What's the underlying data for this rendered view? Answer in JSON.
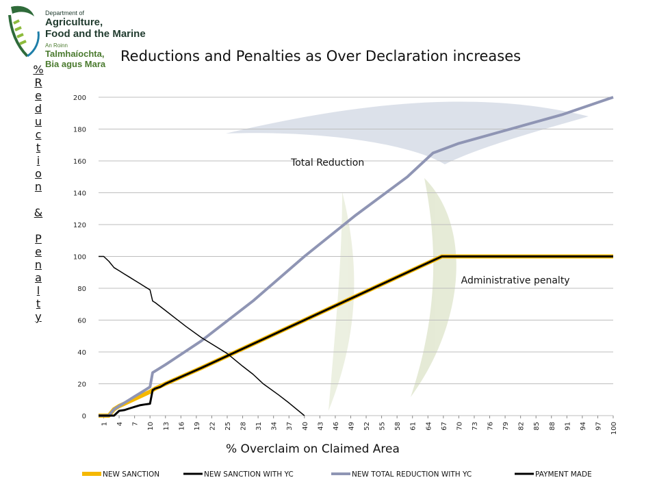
{
  "logo": {
    "line1": "Department of",
    "line2": "Agriculture,",
    "line3": "Food and the Marine",
    "line4": "An Roinn",
    "line5": "Talmhaíochta,",
    "line6": "Bia agus Mara"
  },
  "ylabel_text": "%\nR\ne\nd\nu\nc\nt\ni\no\nn\n\n&\n\nP\ne\nn\na\nl\nt\ny",
  "colors": {
    "new_sanction": "#f5b800",
    "new_sanction_yc": "#000000",
    "total_reduction": "#8f95b4",
    "payment_made": "#000000",
    "grid": "#bdbdbd"
  },
  "chart_data": {
    "type": "line",
    "title": "Reductions and Penalties as Over Declaration increases",
    "xlabel": "% Overclaim on Claimed Area",
    "ylabel": "% Reduction & Penalty",
    "x_ticks": [
      1,
      4,
      7,
      10,
      13,
      16,
      19,
      22,
      25,
      28,
      31,
      34,
      37,
      40,
      43,
      46,
      49,
      52,
      55,
      58,
      61,
      64,
      67,
      70,
      73,
      76,
      79,
      82,
      85,
      88,
      91,
      94,
      97,
      100
    ],
    "ylim": [
      0,
      200
    ],
    "y_ticks": [
      0,
      20,
      40,
      60,
      80,
      100,
      120,
      140,
      160,
      180,
      200
    ],
    "grid": "horizontal",
    "legend_position": "bottom",
    "series": [
      {
        "name": "NEW SANCTION",
        "points": [
          [
            0,
            0
          ],
          [
            1,
            0
          ],
          [
            2,
            0
          ],
          [
            3,
            4
          ],
          [
            4,
            6
          ],
          [
            5,
            7.5
          ],
          [
            6,
            9
          ],
          [
            7,
            10.5
          ],
          [
            8,
            12
          ],
          [
            9,
            13.5
          ],
          [
            10,
            15
          ],
          [
            11,
            17
          ],
          [
            12,
            18.5
          ],
          [
            13,
            20
          ],
          [
            20,
            30
          ],
          [
            30,
            45
          ],
          [
            40,
            60
          ],
          [
            50,
            75
          ],
          [
            60,
            90
          ],
          [
            66.7,
            100
          ],
          [
            100,
            100
          ]
        ]
      },
      {
        "name": "NEW SANCTION WITH YC",
        "points": [
          [
            0,
            0
          ],
          [
            1,
            0
          ],
          [
            2,
            0
          ],
          [
            3,
            0
          ],
          [
            4,
            3
          ],
          [
            5,
            3.5
          ],
          [
            6,
            4.5
          ],
          [
            7,
            5.5
          ],
          [
            8,
            6.5
          ],
          [
            9,
            7
          ],
          [
            10,
            7.5
          ],
          [
            10.5,
            16
          ],
          [
            11,
            17
          ],
          [
            12,
            18
          ],
          [
            13,
            20
          ],
          [
            20,
            30
          ],
          [
            30,
            45
          ],
          [
            40,
            60
          ],
          [
            50,
            75
          ],
          [
            60,
            90
          ],
          [
            66.7,
            100
          ],
          [
            100,
            100
          ]
        ]
      },
      {
        "name": "NEW TOTAL REDUCTION WITH YC",
        "points": [
          [
            0,
            0
          ],
          [
            1,
            0
          ],
          [
            2,
            0
          ],
          [
            3,
            4
          ],
          [
            4,
            6
          ],
          [
            5,
            8
          ],
          [
            6,
            10
          ],
          [
            7,
            12
          ],
          [
            8,
            14
          ],
          [
            9,
            16
          ],
          [
            10,
            18
          ],
          [
            10.5,
            27
          ],
          [
            11,
            28
          ],
          [
            13,
            32
          ],
          [
            20,
            47
          ],
          [
            30,
            72
          ],
          [
            40,
            100
          ],
          [
            50,
            126
          ],
          [
            60,
            150
          ],
          [
            65,
            165
          ],
          [
            70,
            171
          ],
          [
            80,
            180
          ],
          [
            90,
            189
          ],
          [
            100,
            200
          ]
        ]
      },
      {
        "name": "PAYMENT MADE",
        "points": [
          [
            0,
            100
          ],
          [
            1,
            100
          ],
          [
            2,
            97
          ],
          [
            3,
            93
          ],
          [
            4,
            91
          ],
          [
            5,
            89
          ],
          [
            6,
            87
          ],
          [
            7,
            85
          ],
          [
            8,
            83
          ],
          [
            9,
            81
          ],
          [
            10,
            79
          ],
          [
            10.5,
            72
          ],
          [
            11,
            71
          ],
          [
            13,
            66
          ],
          [
            15,
            61
          ],
          [
            17,
            56
          ],
          [
            20,
            49
          ],
          [
            25,
            39
          ],
          [
            28,
            31
          ],
          [
            30,
            26
          ],
          [
            32,
            20
          ],
          [
            35,
            13
          ],
          [
            37,
            8
          ],
          [
            40,
            0
          ]
        ]
      }
    ],
    "annotations": [
      {
        "text": "Total Reduction",
        "x": 44.5,
        "y": 157
      },
      {
        "text": "Administrative penalty",
        "x": 81,
        "y": 83
      }
    ]
  }
}
